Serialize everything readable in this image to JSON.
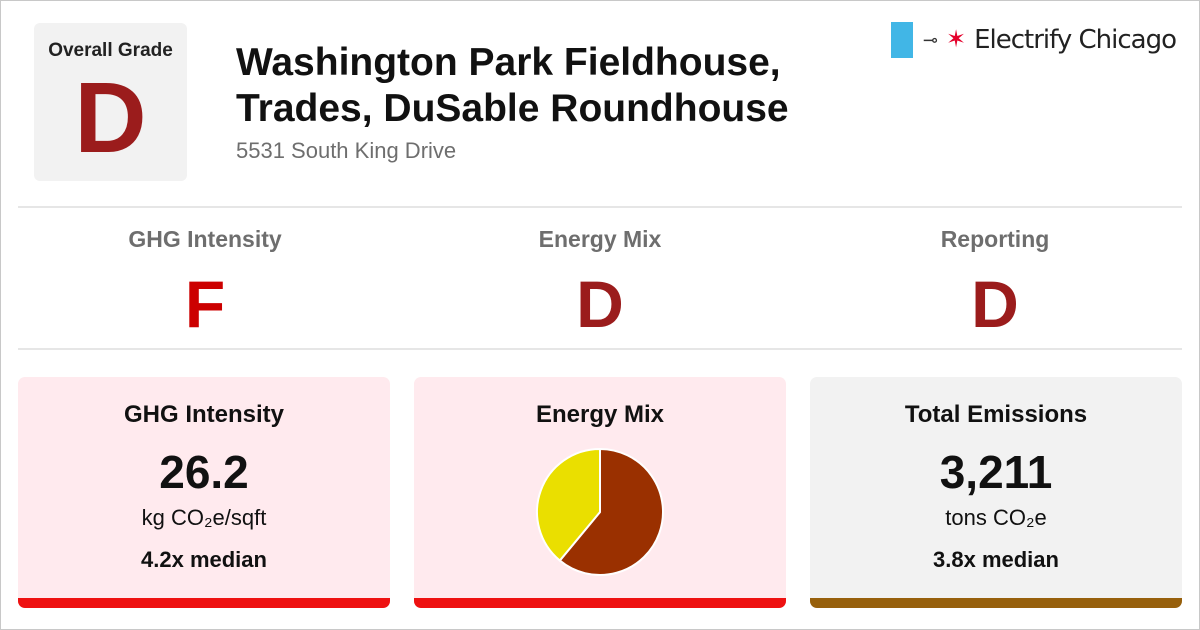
{
  "header": {
    "overall_grade_label": "Overall Grade",
    "overall_grade": "D",
    "title_line1": "Washington Park Fieldhouse,",
    "title_line2": "Trades, DuSable Roundhouse",
    "address": "5531 South King Drive"
  },
  "logo": {
    "text": "Electrify Chicago",
    "plug_glyph": "⊸",
    "star_glyph": "✶",
    "flag_color": "#41b6e6",
    "star_color": "#e4002b"
  },
  "categories": [
    {
      "label": "GHG Intensity",
      "grade": "F",
      "color": "#cc0000"
    },
    {
      "label": "Energy Mix",
      "grade": "D",
      "color": "#9b1c1c"
    },
    {
      "label": "Reporting",
      "grade": "D",
      "color": "#9b1c1c"
    }
  ],
  "cards": {
    "ghg": {
      "title": "GHG Intensity",
      "value": "26.2",
      "unit": "kg CO₂e/sqft",
      "median": "4.2x median",
      "bg": "#ffeaee",
      "bar_color": "#ee1111"
    },
    "mix": {
      "title": "Energy Mix",
      "bg": "#ffeaee",
      "bar_color": "#ee1111"
    },
    "total": {
      "title": "Total Emissions",
      "value": "3,211",
      "unit": "tons CO₂e",
      "median": "3.8x median",
      "bg": "#f2f2f2",
      "bar_color": "#97600c"
    }
  },
  "chart_data": {
    "type": "pie",
    "slices": [
      {
        "value": 61,
        "color": "#9a3000"
      },
      {
        "value": 39,
        "color": "#eadf00"
      }
    ]
  },
  "colors": {
    "grade_d": "#9b1c1c",
    "grade_f": "#cc0000"
  }
}
